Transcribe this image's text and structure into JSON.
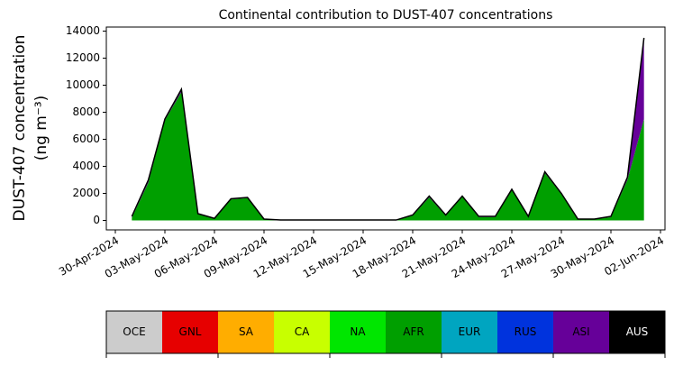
{
  "chart_data": {
    "type": "stacked_area",
    "title": "Continental contribution to DUST-407 concentrations",
    "y_label": [
      "DUST-407 concentration",
      "(ng m⁻³)"
    ],
    "x": [
      "2024-05-01",
      "2024-05-02",
      "2024-05-03",
      "2024-05-04",
      "2024-05-05",
      "2024-05-06",
      "2024-05-07",
      "2024-05-08",
      "2024-05-09",
      "2024-05-10",
      "2024-05-11",
      "2024-05-12",
      "2024-05-13",
      "2024-05-14",
      "2024-05-15",
      "2024-05-16",
      "2024-05-17",
      "2024-05-18",
      "2024-05-19",
      "2024-05-20",
      "2024-05-21",
      "2024-05-22",
      "2024-05-23",
      "2024-05-24",
      "2024-05-25",
      "2024-05-26",
      "2024-05-27",
      "2024-05-28",
      "2024-05-29",
      "2024-05-30",
      "2024-05-31",
      "2024-06-01"
    ],
    "series": [
      {
        "name": "AFR",
        "color": "#009f00",
        "values": [
          200,
          2800,
          7400,
          9500,
          450,
          150,
          1550,
          1650,
          100,
          30,
          30,
          30,
          30,
          30,
          30,
          30,
          30,
          350,
          1700,
          350,
          1750,
          250,
          250,
          2250,
          250,
          3500,
          1950,
          80,
          80,
          250,
          3000,
          7500
        ]
      },
      {
        "name": "ASI",
        "color": "#660099",
        "values": [
          100,
          200,
          100,
          200,
          50,
          0,
          50,
          50,
          0,
          0,
          0,
          0,
          0,
          0,
          0,
          0,
          0,
          50,
          100,
          50,
          50,
          50,
          50,
          50,
          50,
          100,
          50,
          20,
          20,
          50,
          200,
          6000
        ]
      }
    ],
    "outline_color": "#000000",
    "xlim": [
      "2024-04-30",
      "2024-06-02"
    ],
    "xticks": [
      {
        "value": "2024-04-30",
        "label": "30-Apr-2024"
      },
      {
        "value": "2024-05-03",
        "label": "03-May-2024"
      },
      {
        "value": "2024-05-06",
        "label": "06-May-2024"
      },
      {
        "value": "2024-05-09",
        "label": "09-May-2024"
      },
      {
        "value": "2024-05-12",
        "label": "12-May-2024"
      },
      {
        "value": "2024-05-15",
        "label": "15-May-2024"
      },
      {
        "value": "2024-05-18",
        "label": "18-May-2024"
      },
      {
        "value": "2024-05-21",
        "label": "21-May-2024"
      },
      {
        "value": "2024-05-24",
        "label": "24-May-2024"
      },
      {
        "value": "2024-05-27",
        "label": "27-May-2024"
      },
      {
        "value": "2024-05-30",
        "label": "30-May-2024"
      },
      {
        "value": "2024-06-02",
        "label": "02-Jun-2024"
      }
    ],
    "ylim": [
      -700,
      14300
    ],
    "yticks": [
      0,
      2000,
      4000,
      6000,
      8000,
      10000,
      12000,
      14000
    ],
    "colorbar": {
      "labels": [
        "OCE",
        "GNL",
        "SA",
        "CA",
        "NA",
        "AFR",
        "EUR",
        "RUS",
        "ASI",
        "AUS"
      ],
      "colors": [
        "#cccccc",
        "#e60000",
        "#ffad00",
        "#c8ff00",
        "#00e600",
        "#009f00",
        "#00a5c0",
        "#0033dd",
        "#660099",
        "#000000"
      ],
      "text_colors": [
        "#000000",
        "#000000",
        "#000000",
        "#000000",
        "#000000",
        "#000000",
        "#000000",
        "#000000",
        "#000000",
        "#ffffff"
      ]
    }
  }
}
